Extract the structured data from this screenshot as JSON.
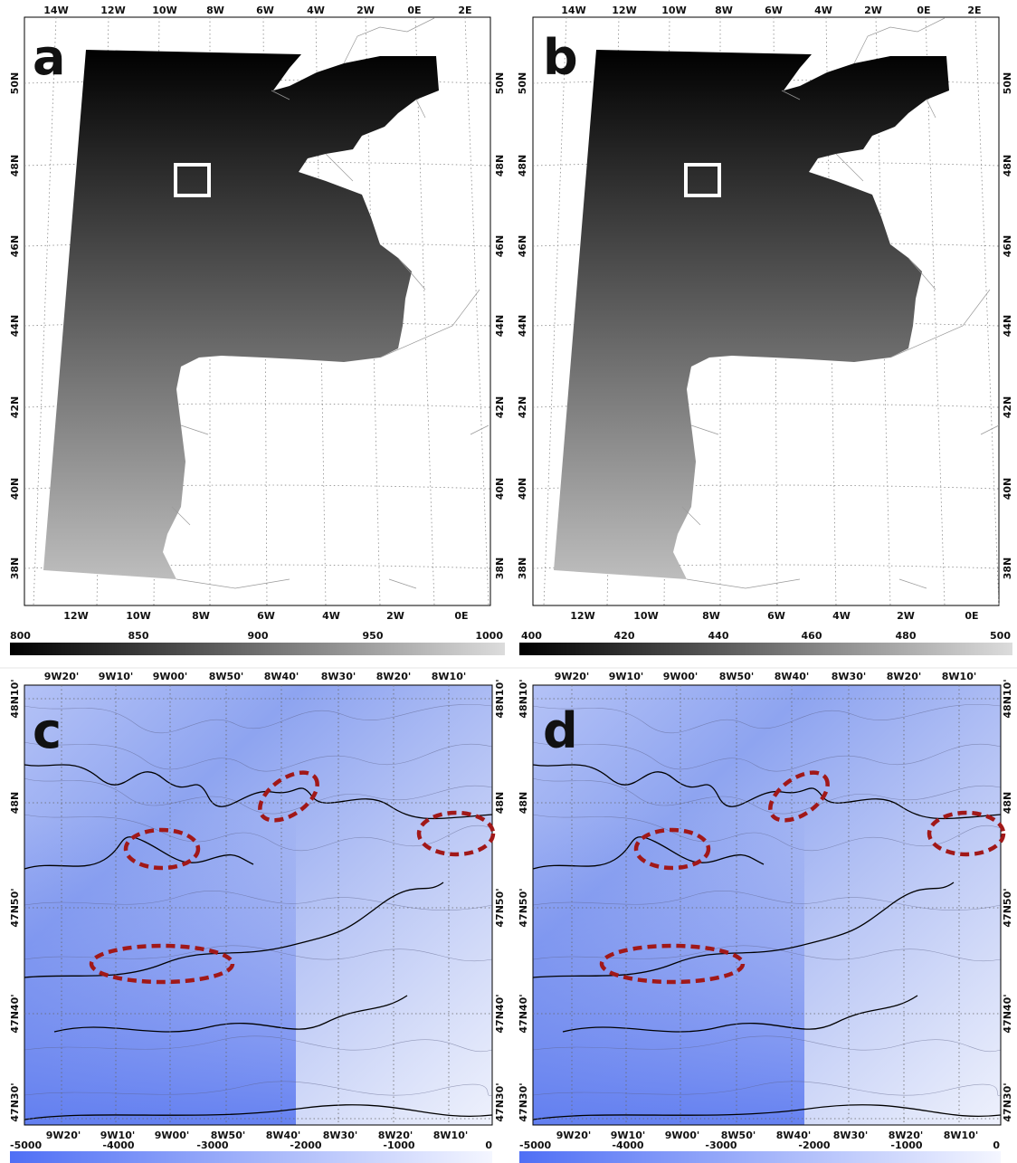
{
  "panels": [
    {
      "id": "a",
      "letter": "a",
      "top_lon": [
        "14W",
        "12W",
        "10W",
        "8W",
        "6W",
        "4W",
        "2W",
        "0E",
        "2E"
      ],
      "bottom_lon": [
        "12W",
        "10W",
        "8W",
        "6W",
        "4W",
        "2W",
        "0E"
      ],
      "lat": [
        "50N",
        "48N",
        "46N",
        "44N",
        "42N",
        "40N",
        "38N"
      ],
      "colorbar": {
        "ticks": [
          "800",
          "850",
          "900",
          "950",
          "1000"
        ],
        "colors": [
          "#000000",
          "#d9d9d9"
        ]
      }
    },
    {
      "id": "b",
      "letter": "b",
      "top_lon": [
        "14W",
        "12W",
        "10W",
        "8W",
        "6W",
        "4W",
        "2W",
        "0E",
        "2E"
      ],
      "bottom_lon": [
        "12W",
        "10W",
        "8W",
        "6W",
        "4W",
        "2W",
        "0E"
      ],
      "lat": [
        "50N",
        "48N",
        "46N",
        "44N",
        "42N",
        "40N",
        "38N"
      ],
      "colorbar": {
        "ticks": [
          "400",
          "420",
          "440",
          "460",
          "480",
          "500"
        ],
        "colors": [
          "#000000",
          "#d9d9d9"
        ]
      }
    },
    {
      "id": "c",
      "letter": "c",
      "top_lon": [
        "9W20'",
        "9W10'",
        "9W00'",
        "8W50'",
        "8W40'",
        "8W30'",
        "8W20'",
        "8W10'"
      ],
      "bottom_lon": [
        "9W20'",
        "9W10'",
        "9W00'",
        "8W50'",
        "8W40'",
        "8W30'",
        "8W20'",
        "8W10'"
      ],
      "lat": [
        "48N10'",
        "48N",
        "47N50'",
        "47N40'",
        "47N30'"
      ],
      "colorbar": {
        "ticks": [
          "-5000",
          "-4000",
          "-3000",
          "-2000",
          "-1000",
          "0"
        ],
        "colors": [
          "#4f6ff5",
          "#f4f6ff"
        ]
      }
    },
    {
      "id": "d",
      "letter": "d",
      "top_lon": [
        "9W20'",
        "9W10'",
        "9W00'",
        "8W50'",
        "8W40'",
        "8W30'",
        "8W20'",
        "8W10'"
      ],
      "bottom_lon": [
        "9W20'",
        "9W10'",
        "9W00'",
        "8W50'",
        "8W40'",
        "8W30'",
        "8W20'",
        "8W10'"
      ],
      "lat": [
        "48N10'",
        "48N",
        "47N50'",
        "47N40'",
        "47N30'"
      ],
      "colorbar": {
        "ticks": [
          "-5000",
          "-4000",
          "-3000",
          "-2000",
          "-1000",
          "0"
        ],
        "colors": [
          "#4f6ff5",
          "#f4f6ff"
        ]
      }
    }
  ],
  "colors": {
    "highlight_box": "#ffffff",
    "ellipse": "#a11818",
    "contour_major": "#000000",
    "contour_minor": "#5a5f86",
    "land": "#ffffff"
  }
}
